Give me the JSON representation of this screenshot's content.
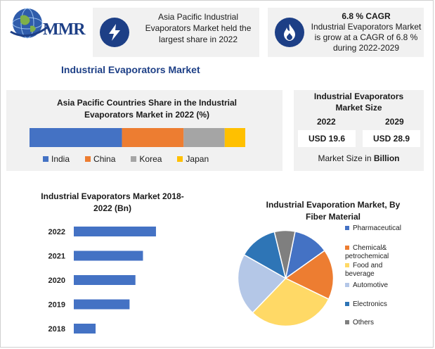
{
  "logo": {
    "text": "MMR"
  },
  "colors": {
    "navy": "#1d3f86",
    "blue": "#4472c4",
    "orange": "#ed7d31",
    "gray": "#a5a5a5",
    "yellow": "#ffc000",
    "lightblue": "#b4c7e7",
    "steel": "#5b9bd5",
    "darkgray": "#7f7f7f"
  },
  "header": {
    "card1_text": "Asia Pacific Industrial Evaporators Market held the largest share in 2022",
    "card2_title": "6.8 % CAGR",
    "card2_text": "Industrial Evaporators Market is grow at a CAGR of 6.8 % during 2022-2029"
  },
  "page_title": "Industrial Evaporators Market",
  "market_size": {
    "title": "Industrial Evaporators Market Size",
    "years": [
      "2022",
      "2029"
    ],
    "values": [
      "USD 19.6",
      "USD 28.9"
    ],
    "note_prefix": "Market Size in ",
    "note_unit": "Billion"
  },
  "chart_data": [
    {
      "type": "bar",
      "orientation": "horizontal-stacked",
      "title": "Asia Pacific Countries Share in the Industrial Evaporators Market in 2022 (%)",
      "categories": [
        "India",
        "China",
        "Korea",
        "Japan"
      ],
      "values": [
        45,
        30,
        20,
        10
      ],
      "colors": [
        "#4472c4",
        "#ed7d31",
        "#a5a5a5",
        "#ffc000"
      ],
      "legend": "bottom"
    },
    {
      "type": "bar",
      "orientation": "horizontal",
      "title": "Industrial Evaporators Market 2018-2022 (Bn)",
      "categories": [
        "2022",
        "2021",
        "2020",
        "2019",
        "2018"
      ],
      "values": [
        19.6,
        16.5,
        14.7,
        13.3,
        5.2
      ],
      "xlim": [
        0,
        30
      ],
      "color": "#4472c4"
    },
    {
      "type": "pie",
      "title": "Industrial Evaporation Market, By Fiber Material",
      "categories": [
        "Pharmaceutical",
        "Chemical& petrochemical",
        "Food and beverage",
        "Automotive",
        "Electronics",
        "Others"
      ],
      "values": [
        12,
        17,
        30,
        21,
        13,
        7
      ],
      "colors": [
        "#4472c4",
        "#ed7d31",
        "#ffd966",
        "#b4c7e7",
        "#2e75b6",
        "#7f7f7f"
      ],
      "legend": "right"
    }
  ]
}
